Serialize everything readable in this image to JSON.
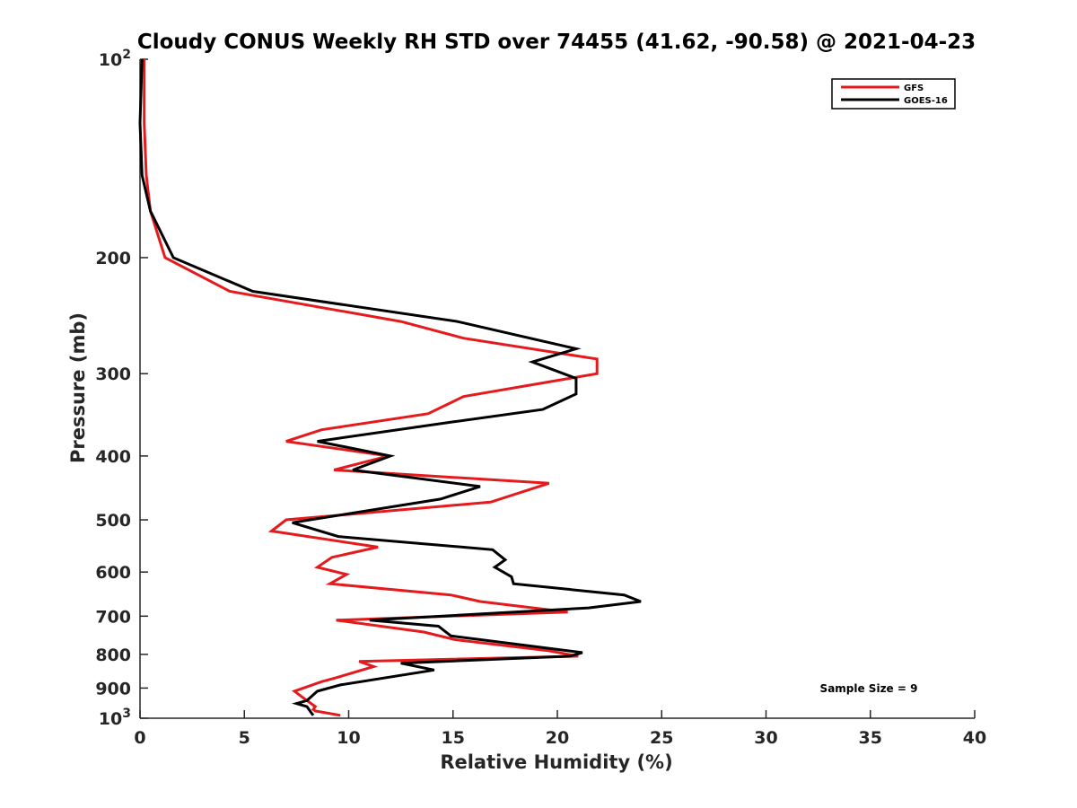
{
  "chart_data": {
    "type": "line",
    "title": "Cloudy CONUS Weekly RH STD over 74455 (41.62, -90.58) @ 2021-04-23",
    "xlabel": "Relative Humidity (%)",
    "ylabel": "Pressure (mb)",
    "xlim": [
      0,
      40
    ],
    "ylim": [
      100,
      1000
    ],
    "y_scale": "log",
    "y_reversed": true,
    "x_ticks": [
      0,
      5,
      10,
      15,
      20,
      25,
      30,
      35,
      40
    ],
    "y_ticks": [
      {
        "value": 100,
        "base": "10",
        "exp": "2"
      },
      {
        "value": 200,
        "label": "200"
      },
      {
        "value": 300,
        "label": "300"
      },
      {
        "value": 400,
        "label": "400"
      },
      {
        "value": 500,
        "label": "500"
      },
      {
        "value": 600,
        "label": "600"
      },
      {
        "value": 700,
        "label": "700"
      },
      {
        "value": 800,
        "label": "800"
      },
      {
        "value": 900,
        "label": "900"
      },
      {
        "value": 1000,
        "base": "10",
        "exp": "3"
      }
    ],
    "legend_position": "top-right",
    "series": [
      {
        "name": "GFS",
        "color": "#e41a1c",
        "points": [
          [
            0.2,
            100
          ],
          [
            0.2,
            125
          ],
          [
            0.3,
            150
          ],
          [
            0.5,
            170
          ],
          [
            1.2,
            200
          ],
          [
            4.3,
            225
          ],
          [
            12.5,
            250
          ],
          [
            15.5,
            265
          ],
          [
            21.9,
            285
          ],
          [
            21.9,
            300
          ],
          [
            15.5,
            325
          ],
          [
            13.8,
            345
          ],
          [
            8.7,
            365
          ],
          [
            7.0,
            380
          ],
          [
            11.9,
            400
          ],
          [
            9.3,
            420
          ],
          [
            19.6,
            440
          ],
          [
            16.8,
            470
          ],
          [
            7.0,
            500
          ],
          [
            6.3,
            520
          ],
          [
            11.4,
            550
          ],
          [
            9.2,
            570
          ],
          [
            8.5,
            590
          ],
          [
            9.9,
            605
          ],
          [
            9.1,
            625
          ],
          [
            14.9,
            650
          ],
          [
            16.3,
            665
          ],
          [
            20.5,
            690
          ],
          [
            9.4,
            710
          ],
          [
            13.6,
            740
          ],
          [
            15.1,
            760
          ],
          [
            19.6,
            790
          ],
          [
            21.0,
            805
          ],
          [
            10.5,
            820
          ],
          [
            11.2,
            835
          ],
          [
            9.3,
            870
          ],
          [
            8.7,
            880
          ],
          [
            7.4,
            910
          ],
          [
            7.8,
            930
          ],
          [
            8.2,
            950
          ],
          [
            8.4,
            960
          ],
          [
            8.3,
            970
          ],
          [
            8.4,
            975
          ],
          [
            9.6,
            990
          ]
        ]
      },
      {
        "name": "GOES-16",
        "color": "#000000",
        "points": [
          [
            0.1,
            100
          ],
          [
            0.0,
            125
          ],
          [
            0.1,
            150
          ],
          [
            0.5,
            170
          ],
          [
            1.6,
            200
          ],
          [
            5.4,
            225
          ],
          [
            15.2,
            250
          ],
          [
            20.9,
            275
          ],
          [
            18.8,
            288
          ],
          [
            20.9,
            305
          ],
          [
            20.9,
            322
          ],
          [
            19.3,
            340
          ],
          [
            15.0,
            355
          ],
          [
            8.5,
            380
          ],
          [
            12.0,
            400
          ],
          [
            10.2,
            420
          ],
          [
            16.3,
            445
          ],
          [
            14.4,
            465
          ],
          [
            7.3,
            505
          ],
          [
            9.5,
            530
          ],
          [
            16.9,
            555
          ],
          [
            17.5,
            575
          ],
          [
            17.0,
            590
          ],
          [
            17.8,
            610
          ],
          [
            17.9,
            625
          ],
          [
            23.2,
            650
          ],
          [
            24.0,
            665
          ],
          [
            21.5,
            680
          ],
          [
            11.0,
            710
          ],
          [
            14.3,
            725
          ],
          [
            14.9,
            750
          ],
          [
            21.2,
            795
          ],
          [
            20.6,
            805
          ],
          [
            12.5,
            825
          ],
          [
            14.1,
            845
          ],
          [
            9.6,
            890
          ],
          [
            8.5,
            910
          ],
          [
            8.0,
            940
          ],
          [
            7.5,
            950
          ],
          [
            8.0,
            960
          ],
          [
            8.2,
            980
          ],
          [
            8.3,
            990
          ]
        ]
      }
    ],
    "annotations": [
      {
        "text": "Sample Size = 9"
      }
    ]
  }
}
